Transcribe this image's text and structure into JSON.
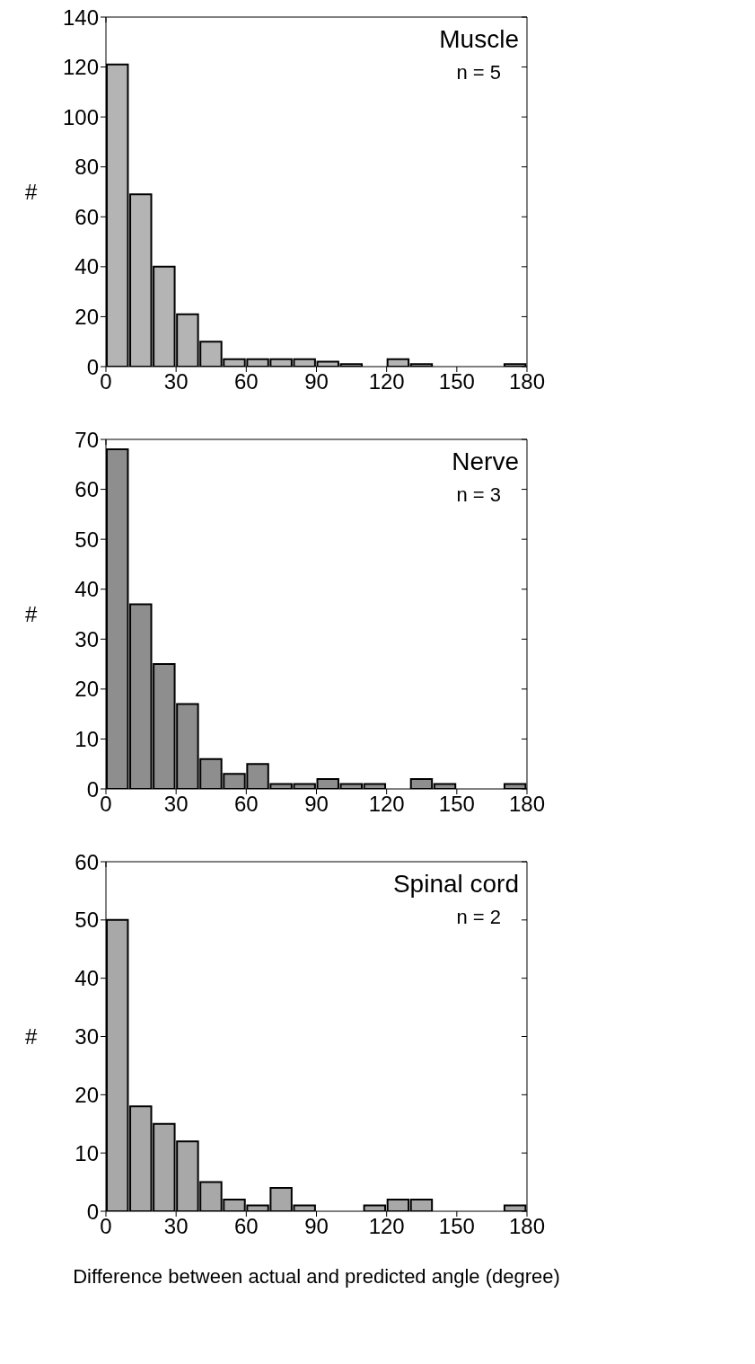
{
  "chart_data": [
    {
      "type": "histogram",
      "annotations": [
        "Muscle",
        "n = 5"
      ],
      "ylabel": "#",
      "bins": [
        0,
        10,
        20,
        30,
        40,
        50,
        60,
        70,
        80,
        90,
        100,
        110,
        120,
        130,
        140,
        150,
        160,
        170,
        180
      ],
      "values": [
        121,
        69,
        40,
        21,
        10,
        3,
        3,
        3,
        3,
        2,
        1,
        0,
        3,
        1,
        0,
        0,
        0,
        1
      ],
      "color": "#b4b4b4",
      "xlim": [
        0,
        180
      ],
      "xticks": [
        0,
        30,
        60,
        90,
        120,
        150,
        180
      ],
      "ylim": [
        0,
        140
      ],
      "yticks": [
        0,
        20,
        40,
        60,
        80,
        100,
        120,
        140
      ],
      "grid": false
    },
    {
      "type": "histogram",
      "annotations": [
        "Nerve",
        "n = 3"
      ],
      "ylabel": "#",
      "bins": [
        0,
        10,
        20,
        30,
        40,
        50,
        60,
        70,
        80,
        90,
        100,
        110,
        120,
        130,
        140,
        150,
        160,
        170,
        180
      ],
      "values": [
        68,
        37,
        25,
        17,
        6,
        3,
        5,
        1,
        1,
        2,
        1,
        1,
        0,
        2,
        1,
        0,
        0,
        1
      ],
      "color": "#8e8e8e",
      "xlim": [
        0,
        180
      ],
      "xticks": [
        0,
        30,
        60,
        90,
        120,
        150,
        180
      ],
      "ylim": [
        0,
        70
      ],
      "yticks": [
        0,
        10,
        20,
        30,
        40,
        50,
        60,
        70
      ],
      "grid": false
    },
    {
      "type": "histogram",
      "annotations": [
        "Spinal cord",
        "n = 2"
      ],
      "ylabel": "#",
      "xlabel": "Difference between actual and predicted angle (degree)",
      "bins": [
        0,
        10,
        20,
        30,
        40,
        50,
        60,
        70,
        80,
        90,
        100,
        110,
        120,
        130,
        140,
        150,
        160,
        170,
        180
      ],
      "values": [
        50,
        18,
        15,
        12,
        5,
        2,
        1,
        4,
        1,
        0,
        0,
        1,
        2,
        2,
        0,
        0,
        0,
        1
      ],
      "color": "#a8a8a8",
      "xlim": [
        0,
        180
      ],
      "xticks": [
        0,
        30,
        60,
        90,
        120,
        150,
        180
      ],
      "ylim": [
        0,
        60
      ],
      "yticks": [
        0,
        10,
        20,
        30,
        40,
        50,
        60
      ],
      "grid": false
    }
  ]
}
